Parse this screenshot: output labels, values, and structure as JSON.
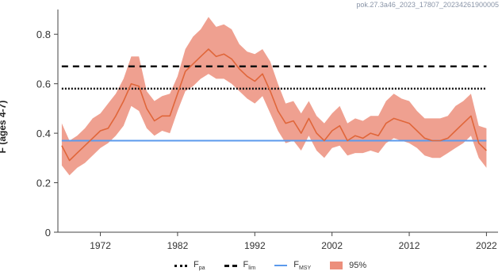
{
  "watermark": "pok.27.3a46_2023_17807_20234261900005",
  "chart_data": {
    "type": "line",
    "ylabel": "F (ages 4-7)",
    "xlabel": "",
    "xlim": [
      1966.5,
      2023.5
    ],
    "ylim": [
      0,
      0.9
    ],
    "yticks": [
      0,
      0.2,
      0.4,
      0.6,
      0.8
    ],
    "ytick_labels": [
      "0",
      "0.2",
      "0.4",
      "0.6",
      "0.8"
    ],
    "xticks": [
      1972,
      1982,
      1992,
      2002,
      2012,
      2022
    ],
    "xtick_labels": [
      "1972",
      "1982",
      "1992",
      "2002",
      "2012",
      "2022"
    ],
    "grid": false,
    "series": [
      {
        "name": "F",
        "color": "#e0663a",
        "x": [
          1967,
          1968,
          1969,
          1970,
          1971,
          1972,
          1973,
          1974,
          1975,
          1976,
          1977,
          1978,
          1979,
          1980,
          1981,
          1982,
          1983,
          1984,
          1985,
          1986,
          1987,
          1988,
          1989,
          1990,
          1991,
          1992,
          1993,
          1994,
          1995,
          1996,
          1997,
          1998,
          1999,
          2000,
          2001,
          2002,
          2003,
          2004,
          2005,
          2006,
          2007,
          2008,
          2009,
          2010,
          2011,
          2012,
          2013,
          2014,
          2015,
          2016,
          2017,
          2018,
          2019,
          2020,
          2021,
          2022
        ],
        "y": [
          0.35,
          0.29,
          0.32,
          0.35,
          0.38,
          0.41,
          0.42,
          0.47,
          0.53,
          0.6,
          0.59,
          0.5,
          0.45,
          0.47,
          0.47,
          0.56,
          0.65,
          0.68,
          0.71,
          0.74,
          0.71,
          0.72,
          0.7,
          0.66,
          0.63,
          0.61,
          0.64,
          0.57,
          0.49,
          0.44,
          0.45,
          0.4,
          0.46,
          0.4,
          0.37,
          0.41,
          0.43,
          0.37,
          0.39,
          0.38,
          0.4,
          0.39,
          0.44,
          0.46,
          0.45,
          0.44,
          0.41,
          0.38,
          0.37,
          0.37,
          0.38,
          0.41,
          0.44,
          0.47,
          0.36,
          0.33
        ]
      }
    ],
    "band": {
      "name": "95%",
      "color": "#ec8f7c",
      "upper": [
        0.44,
        0.37,
        0.39,
        0.42,
        0.46,
        0.48,
        0.52,
        0.56,
        0.62,
        0.71,
        0.71,
        0.57,
        0.53,
        0.55,
        0.56,
        0.63,
        0.74,
        0.79,
        0.82,
        0.87,
        0.83,
        0.84,
        0.82,
        0.76,
        0.73,
        0.72,
        0.74,
        0.69,
        0.6,
        0.52,
        0.53,
        0.48,
        0.53,
        0.47,
        0.44,
        0.48,
        0.51,
        0.44,
        0.46,
        0.45,
        0.47,
        0.47,
        0.53,
        0.56,
        0.54,
        0.53,
        0.49,
        0.46,
        0.46,
        0.46,
        0.47,
        0.51,
        0.53,
        0.56,
        0.43,
        0.42
      ],
      "lower": [
        0.27,
        0.23,
        0.26,
        0.28,
        0.31,
        0.34,
        0.36,
        0.39,
        0.43,
        0.51,
        0.49,
        0.42,
        0.39,
        0.41,
        0.4,
        0.49,
        0.57,
        0.59,
        0.62,
        0.64,
        0.62,
        0.62,
        0.6,
        0.57,
        0.54,
        0.52,
        0.55,
        0.48,
        0.41,
        0.36,
        0.37,
        0.33,
        0.39,
        0.33,
        0.3,
        0.34,
        0.35,
        0.31,
        0.32,
        0.32,
        0.33,
        0.32,
        0.36,
        0.38,
        0.37,
        0.36,
        0.34,
        0.31,
        0.3,
        0.3,
        0.32,
        0.34,
        0.36,
        0.39,
        0.3,
        0.26
      ]
    },
    "reference_lines": [
      {
        "key": "Fpa",
        "label": "F",
        "sub": "pa",
        "value": 0.58,
        "color": "#111111",
        "style": "dotted"
      },
      {
        "key": "Flim",
        "label": "F",
        "sub": "lim",
        "value": 0.67,
        "color": "#111111",
        "style": "dashed"
      },
      {
        "key": "Fmsy",
        "label": "F",
        "sub": "MSY",
        "value": 0.37,
        "color": "#5b9aec",
        "style": "solid"
      }
    ],
    "legend": {
      "placement": "bottom",
      "items": [
        {
          "label": "F",
          "sub": "pa",
          "kind": "dotted",
          "color": "#111111"
        },
        {
          "label": "F",
          "sub": "lim",
          "kind": "dashed",
          "color": "#111111"
        },
        {
          "label": "F",
          "sub": "MSY",
          "kind": "line",
          "color": "#5b9aec"
        },
        {
          "label": "95%",
          "sub": "",
          "kind": "band",
          "color": "#ec8f7c"
        }
      ]
    }
  }
}
